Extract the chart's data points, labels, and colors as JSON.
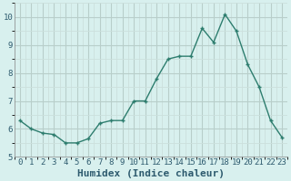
{
  "x": [
    0,
    1,
    2,
    3,
    4,
    5,
    6,
    7,
    8,
    9,
    10,
    11,
    12,
    13,
    14,
    15,
    16,
    17,
    18,
    19,
    20,
    21,
    22,
    23
  ],
  "y": [
    6.3,
    6.0,
    5.85,
    5.8,
    5.5,
    5.5,
    5.65,
    6.2,
    6.3,
    6.3,
    7.0,
    7.0,
    7.8,
    8.5,
    8.6,
    8.6,
    9.6,
    9.1,
    10.1,
    9.5,
    8.3,
    7.5,
    6.3,
    5.7
  ],
  "xlabel": "Humidex (Indice chaleur)",
  "line_color": "#2d7d6e",
  "marker_color": "#2d7d6e",
  "bg_color": "#d8f0ee",
  "grid_major_color": "#b8ceca",
  "grid_minor_color": "#cce0dd",
  "ylim": [
    5,
    10.5
  ],
  "xlim": [
    -0.5,
    23.5
  ],
  "yticks": [
    5,
    6,
    7,
    8,
    9,
    10
  ],
  "xtick_labels": [
    "0",
    "1",
    "2",
    "3",
    "4",
    "5",
    "6",
    "7",
    "8",
    "9",
    "10",
    "11",
    "12",
    "13",
    "14",
    "15",
    "16",
    "17",
    "18",
    "19",
    "20",
    "21",
    "22",
    "23"
  ],
  "xlabel_fontsize": 8,
  "tick_fontsize": 6.5,
  "label_color": "#2d5a6e"
}
